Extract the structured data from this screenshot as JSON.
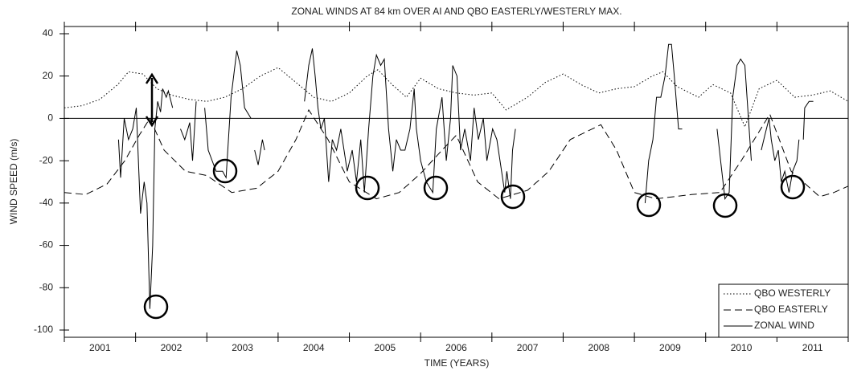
{
  "chart_data": {
    "type": "line",
    "title": "ZONAL WINDS AT 84 km OVER AI AND QBO EASTERLY/WESTERLY MAX.",
    "x_label": "TIME (YEARS)",
    "y_label": "WIND SPEED (m/s)",
    "xlim": [
      2001,
      2012
    ],
    "ylim": [
      -100,
      40
    ],
    "xticks": [
      2001,
      2002,
      2003,
      2004,
      2005,
      2006,
      2007,
      2008,
      2009,
      2010,
      2011,
      2012
    ],
    "xlabels": [
      {
        "value": 2001.5,
        "label": "2001"
      },
      {
        "value": 2002.5,
        "label": "2002"
      },
      {
        "value": 2003.5,
        "label": "2003"
      },
      {
        "value": 2004.5,
        "label": "2004"
      },
      {
        "value": 2005.5,
        "label": "2005"
      },
      {
        "value": 2006.5,
        "label": "2006"
      },
      {
        "value": 2007.5,
        "label": "2007"
      },
      {
        "value": 2008.5,
        "label": "2008"
      },
      {
        "value": 2009.5,
        "label": "2009"
      },
      {
        "value": 2010.5,
        "label": "2010"
      },
      {
        "value": 2011.5,
        "label": "2011"
      }
    ],
    "yticks": [
      40,
      20,
      0,
      -20,
      -40,
      -60,
      -80,
      -100
    ],
    "zero_line": true,
    "grid": false,
    "legend": "lower right",
    "series": [
      {
        "name": "QBO WESTERLY",
        "color": "#000000",
        "dash": "dotted",
        "x": [
          2001.0,
          2001.25,
          2001.5,
          2001.75,
          2001.9,
          2002.1,
          2002.3,
          2002.5,
          2002.75,
          2003.0,
          2003.25,
          2003.5,
          2003.75,
          2004.0,
          2004.25,
          2004.5,
          2004.75,
          2005.0,
          2005.25,
          2005.4,
          2005.6,
          2005.8,
          2006.0,
          2006.25,
          2006.5,
          2006.75,
          2007.0,
          2007.2,
          2007.5,
          2007.75,
          2008.0,
          2008.25,
          2008.5,
          2008.75,
          2009.0,
          2009.25,
          2009.4,
          2009.6,
          2009.9,
          2010.1,
          2010.35,
          2010.55,
          2010.75,
          2011.0,
          2011.25,
          2011.5,
          2011.75,
          2012.0
        ],
        "values": [
          5,
          6,
          9,
          16,
          22,
          21,
          14,
          11,
          9,
          8,
          10,
          14,
          20,
          24,
          17,
          10,
          8,
          12,
          20,
          23,
          16,
          10,
          19,
          14,
          12,
          11,
          12,
          4,
          10,
          17,
          21,
          16,
          12,
          14,
          15,
          20,
          22,
          15,
          10,
          16,
          12,
          -4,
          14,
          18,
          10,
          11,
          13,
          8
        ]
      },
      {
        "name": "QBO EASTERLY",
        "color": "#000000",
        "dash": "dashed",
        "x": [
          2001.0,
          2001.3,
          2001.6,
          2001.85,
          2002.05,
          2002.2,
          2002.4,
          2002.7,
          2003.0,
          2003.35,
          2003.7,
          2004.0,
          2004.25,
          2004.43,
          2004.7,
          2005.0,
          2005.38,
          2005.7,
          2006.0,
          2006.3,
          2006.5,
          2006.8,
          2007.1,
          2007.5,
          2007.8,
          2008.1,
          2008.53,
          2008.75,
          2009.0,
          2009.3,
          2009.8,
          2010.2,
          2010.5,
          2010.9,
          2011.2,
          2011.6,
          2011.8,
          2012.0
        ],
        "values": [
          -35,
          -36,
          -31,
          -20,
          -8,
          0,
          -15,
          -25,
          -27,
          -35,
          -33,
          -25,
          -10,
          4,
          -10,
          -30,
          -38,
          -35,
          -26,
          -15,
          -8,
          -30,
          -38,
          -34,
          -25,
          -10,
          -3,
          -15,
          -35,
          -38,
          -36,
          -35,
          -20,
          2,
          -25,
          -37,
          -35,
          -32
        ]
      },
      {
        "name": "ZONAL WIND",
        "color": "#000000",
        "dash": "solid",
        "x": [
          2001.76,
          2001.79,
          2001.84,
          2001.9,
          2001.96,
          2002.01,
          2002.07,
          2002.12,
          2002.16,
          2002.2,
          2002.24,
          2002.27,
          2002.31,
          2002.35,
          2002.38,
          2002.43,
          2002.46,
          2002.52,
          2002.58,
          2002.63,
          2002.69,
          2002.76,
          2002.8,
          2002.85,
          2002.91,
          2002.97,
          2003.02,
          2003.13,
          2003.22,
          2003.27,
          2003.34,
          2003.42,
          2003.47,
          2003.53,
          2003.62,
          2003.65,
          2003.67,
          2003.72,
          2003.78,
          2003.81,
          2004.1,
          2004.37,
          2004.43,
          2004.48,
          2004.52,
          2004.56,
          2004.6,
          2004.65,
          2004.71,
          2004.76,
          2004.82,
          2004.88,
          2004.97,
          2005.04,
          2005.1,
          2005.16,
          2005.21,
          2005.27,
          2005.33,
          2005.38,
          2005.44,
          2005.49,
          2005.55,
          2005.61,
          2005.66,
          2005.72,
          2005.78,
          2005.85,
          2005.91,
          2005.94,
          2006.0,
          2006.08,
          2006.17,
          2006.22,
          2006.3,
          2006.36,
          2006.42,
          2006.45,
          2006.51,
          2006.56,
          2006.62,
          2006.7,
          2006.75,
          2006.81,
          2006.88,
          2006.93,
          2007.01,
          2007.07,
          2007.18,
          2007.21,
          2007.26,
          2007.29,
          2007.33,
          2008.2,
          2009.15,
          2009.2,
          2009.26,
          2009.31,
          2009.37,
          2009.43,
          2009.48,
          2009.52,
          2009.56,
          2009.62,
          2009.67,
          2009.9,
          2010.16,
          2010.21,
          2010.27,
          2010.33,
          2010.38,
          2010.44,
          2010.49,
          2010.55,
          2010.61,
          2010.64,
          2010.71,
          2010.78,
          2010.83,
          2010.89,
          2010.92,
          2010.97,
          2011.02,
          2011.06,
          2011.11,
          2011.17,
          2011.22,
          2011.28,
          2011.31,
          2011.34,
          2011.37,
          2011.39,
          2011.45,
          2011.51
        ],
        "values": [
          -10,
          -28,
          0,
          -10,
          -5,
          5,
          -45,
          -30,
          -40,
          -90,
          -60,
          -5,
          8,
          3,
          14,
          10,
          13,
          5,
          null,
          -5,
          -10,
          -2,
          -20,
          8,
          null,
          5,
          -15,
          -25,
          -25,
          -28,
          10,
          32,
          25,
          5,
          0,
          null,
          -15,
          -22,
          -10,
          -15,
          null,
          8,
          25,
          33,
          20,
          5,
          -5,
          0,
          -30,
          -10,
          -15,
          -5,
          -25,
          -15,
          -30,
          -10,
          -35,
          -5,
          20,
          30,
          25,
          28,
          -5,
          -25,
          -10,
          -15,
          -15,
          -5,
          14,
          -5,
          -20,
          -30,
          -35,
          -5,
          10,
          -20,
          0,
          25,
          20,
          -15,
          -5,
          -20,
          5,
          -10,
          0,
          -20,
          -5,
          -10,
          -35,
          -25,
          -38,
          -15,
          -5,
          null,
          -40,
          -20,
          -10,
          10,
          10,
          20,
          35,
          35,
          20,
          -5,
          -5,
          null,
          -5,
          -20,
          -38,
          -35,
          10,
          25,
          28,
          25,
          -5,
          -20,
          null,
          -15,
          -8,
          0,
          -10,
          -20,
          -15,
          -30,
          -25,
          -35,
          -25,
          -20,
          -10,
          null,
          -10,
          5,
          8,
          8
        ]
      }
    ]
  }
}
